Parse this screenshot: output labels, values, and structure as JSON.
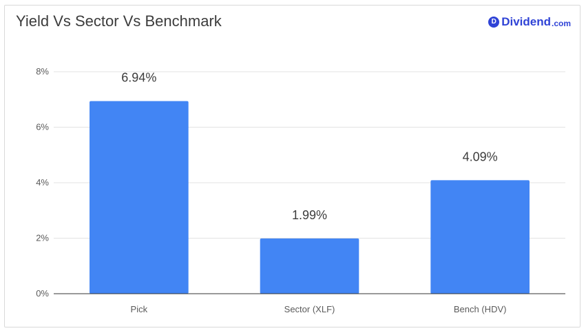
{
  "logo": {
    "badge_letter": "D",
    "word": "Dividend",
    "suffix": ".com",
    "color": "#2f43d6"
  },
  "chart_data": {
    "type": "bar",
    "title": "Yield Vs Sector Vs Benchmark",
    "categories": [
      "Pick",
      "Sector (XLF)",
      "Bench (HDV)"
    ],
    "values": [
      6.94,
      1.99,
      4.09
    ],
    "data_labels": [
      "6.94%",
      "1.99%",
      "4.09%"
    ],
    "y_ticks": [
      0,
      2,
      4,
      6,
      8
    ],
    "y_tick_labels": [
      "0%",
      "2%",
      "4%",
      "6%",
      "8%"
    ],
    "ylim": [
      0,
      8
    ],
    "xlabel": "",
    "ylabel": "",
    "grid": true,
    "legend": "none",
    "bar_color": "#4285f4"
  }
}
